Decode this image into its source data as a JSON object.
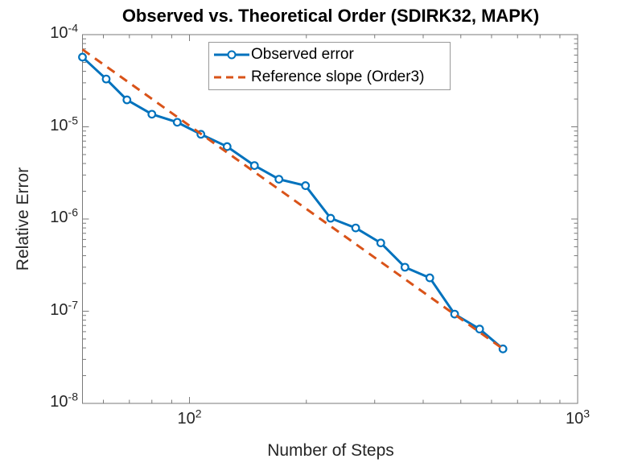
{
  "chart_data": {
    "type": "line",
    "title": "Observed vs. Theoretical Order (SDIRK32, MAPK)",
    "xlabel": "Number of Steps",
    "ylabel": "Relative Error",
    "x_scale": "log",
    "y_scale": "log",
    "xlim": [
      53,
      1000
    ],
    "ylim": [
      1e-08,
      0.0001
    ],
    "x_tick_exponents": [
      2,
      3
    ],
    "y_tick_exponents": [
      -4,
      -5,
      -6,
      -7,
      -8
    ],
    "tick_base": "10",
    "grid": false,
    "legend_position": "north-inside",
    "axis_color": "#7a7a7a",
    "text_color": "#262626",
    "series": [
      {
        "name": "Observed error",
        "color": "#0072BD",
        "style": "solid",
        "marker": "circle",
        "x": [
          53,
          61,
          69,
          80,
          93,
          107,
          125,
          147,
          170,
          199,
          231,
          268,
          311,
          359,
          416,
          482,
          559,
          642
        ],
        "y": [
          5.7e-05,
          3.3e-05,
          1.96e-05,
          1.37e-05,
          1.12e-05,
          8.3e-06,
          6.1e-06,
          3.8e-06,
          2.7e-06,
          2.3e-06,
          1.02e-06,
          8e-07,
          5.5e-07,
          3e-07,
          2.3e-07,
          9.3e-08,
          6.4e-08,
          3.9e-08
        ]
      },
      {
        "name": "Reference slope (Order3)",
        "color": "#D95319",
        "style": "dashed",
        "marker": "none",
        "x": [
          53,
          642
        ],
        "y": [
          6.9e-05,
          3.9e-08
        ]
      }
    ]
  }
}
